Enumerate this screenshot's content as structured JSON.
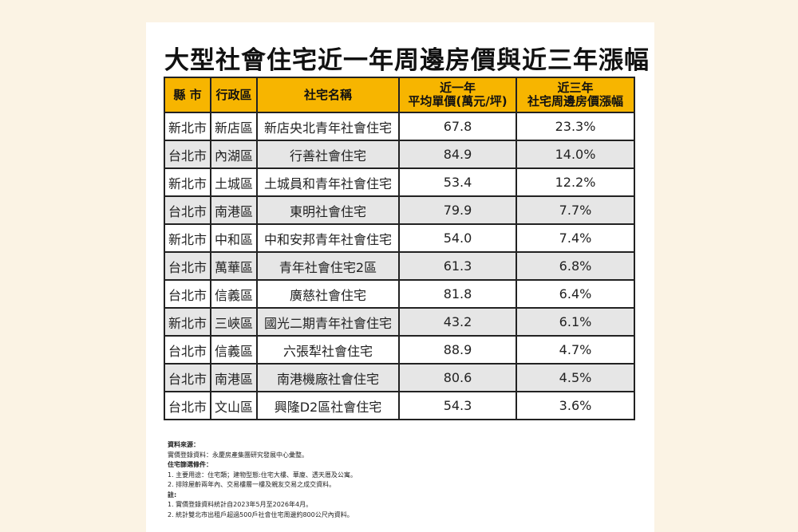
{
  "title": "大型社會住宅近一年周邊房價與近三年漲幅",
  "headers": {
    "city": "縣 市",
    "district": "行政區",
    "name": "社宅名稱",
    "price_l1": "近一年",
    "price_l2": "平均單價(萬元/坪)",
    "growth_l1": "近三年",
    "growth_l2": "社宅周邊房價漲幅"
  },
  "rows": [
    {
      "city": "新北市",
      "district": "新店區",
      "name": "新店央北青年社會住宅",
      "price": "67.8",
      "growth": "23.3%"
    },
    {
      "city": "台北市",
      "district": "內湖區",
      "name": "行善社會住宅",
      "price": "84.9",
      "growth": "14.0%"
    },
    {
      "city": "新北市",
      "district": "土城區",
      "name": "土城員和青年社會住宅",
      "price": "53.4",
      "growth": "12.2%"
    },
    {
      "city": "台北市",
      "district": "南港區",
      "name": "東明社會住宅",
      "price": "79.9",
      "growth": "7.7%"
    },
    {
      "city": "新北市",
      "district": "中和區",
      "name": "中和安邦青年社會住宅",
      "price": "54.0",
      "growth": "7.4%"
    },
    {
      "city": "台北市",
      "district": "萬華區",
      "name": "青年社會住宅2區",
      "price": "61.3",
      "growth": "6.8%"
    },
    {
      "city": "台北市",
      "district": "信義區",
      "name": "廣慈社會住宅",
      "price": "81.8",
      "growth": "6.4%"
    },
    {
      "city": "新北市",
      "district": "三峽區",
      "name": "國光二期青年社會住宅",
      "price": "43.2",
      "growth": "6.1%"
    },
    {
      "city": "台北市",
      "district": "信義區",
      "name": "六張犁社會住宅",
      "price": "88.9",
      "growth": "4.7%"
    },
    {
      "city": "台北市",
      "district": "南港區",
      "name": "南港機廠社會住宅",
      "price": "80.6",
      "growth": "4.5%"
    },
    {
      "city": "台北市",
      "district": "文山區",
      "name": "興隆D2區社會住宅",
      "price": "54.3",
      "growth": "3.6%"
    }
  ],
  "notes": {
    "source_heading": "資料來源：",
    "source_text": "實價登錄資料：永慶房產集團研究發展中心彙整。",
    "filter_heading": "住宅篩選條件：",
    "filter_1": "1. 主要用途：住宅類；建物型態:住宅大樓、華廈、透天厝及公寓。",
    "filter_2": "2. 排除屋齡兩年內、交易樓層一樓及親友交易之成交資料。",
    "note_heading": "註:",
    "note_1": "1. 實價登錄資料統計自2023年5月至2026年4月。",
    "note_2": "2. 統計雙北市出租戶超過500戶社會住宅周邊約800公尺內資料。"
  }
}
